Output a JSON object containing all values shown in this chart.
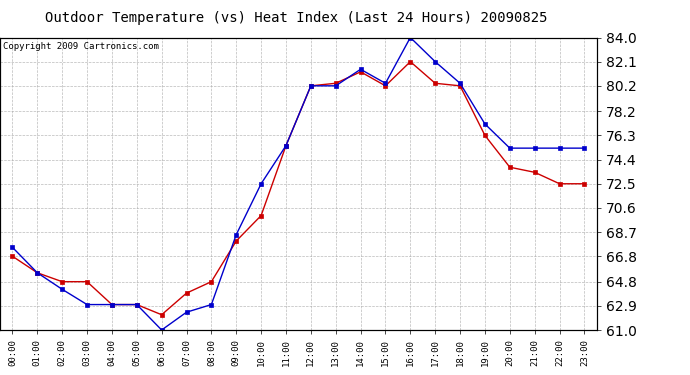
{
  "title": "Outdoor Temperature (vs) Heat Index (Last 24 Hours) 20090825",
  "copyright_text": "Copyright 2009 Cartronics.com",
  "x_labels": [
    "00:00",
    "01:00",
    "02:00",
    "03:00",
    "04:00",
    "05:00",
    "06:00",
    "07:00",
    "08:00",
    "09:00",
    "10:00",
    "11:00",
    "12:00",
    "13:00",
    "14:00",
    "15:00",
    "16:00",
    "17:00",
    "18:00",
    "19:00",
    "20:00",
    "21:00",
    "22:00",
    "23:00"
  ],
  "temp_data": [
    66.8,
    65.5,
    64.8,
    64.8,
    63.0,
    63.0,
    62.2,
    63.9,
    64.8,
    68.0,
    70.0,
    75.5,
    80.2,
    80.4,
    81.3,
    80.2,
    82.1,
    80.4,
    80.2,
    76.3,
    73.8,
    73.4,
    72.5,
    72.5
  ],
  "heat_index_data": [
    67.5,
    65.5,
    64.2,
    63.0,
    63.0,
    63.0,
    61.0,
    62.4,
    63.0,
    68.5,
    72.5,
    75.5,
    80.2,
    80.2,
    81.5,
    80.4,
    84.0,
    82.1,
    80.4,
    77.2,
    75.3,
    75.3,
    75.3,
    75.3
  ],
  "temp_color": "#cc0000",
  "heat_index_color": "#0000cc",
  "ylim_min": 61.0,
  "ylim_max": 84.0,
  "yticks": [
    61.0,
    62.9,
    64.8,
    66.8,
    68.7,
    70.6,
    72.5,
    74.4,
    76.3,
    78.2,
    80.2,
    82.1,
    84.0
  ],
  "background_color": "#ffffff",
  "plot_bg_color": "#ffffff",
  "grid_color": "#aaaaaa",
  "title_fontsize": 10,
  "copyright_fontsize": 6.5
}
